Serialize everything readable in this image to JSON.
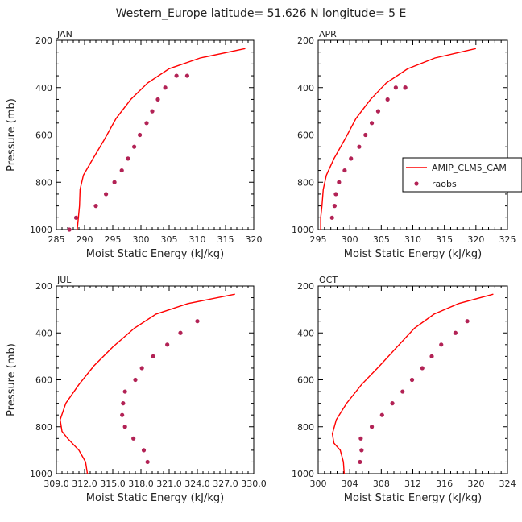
{
  "title": "Western_Europe  latitude= 51.626 N longitude= 5 E",
  "colors": {
    "model": "#ff0000",
    "obs": "#b22255",
    "axis": "#000000"
  },
  "legend": {
    "model_label": "AMIP_CLM5_CAM",
    "obs_label": "raobs",
    "panel": "APR"
  },
  "chart_data": [
    {
      "type": "line",
      "title": "JAN",
      "xlabel": "Moist Static Energy (kJ/kg)",
      "ylabel": "Pressure (mb)",
      "xlim": [
        285,
        320
      ],
      "ylim": [
        1000,
        200
      ],
      "xticks": [
        285,
        290,
        295,
        300,
        305,
        310,
        315,
        320
      ],
      "xtick_labels": [
        "285",
        "290",
        "295",
        "300",
        "305",
        "310",
        "315",
        "320"
      ],
      "yticks": [
        200,
        400,
        600,
        800,
        1000
      ],
      "series": [
        {
          "name": "AMIP_CLM5_CAM",
          "kind": "line",
          "x": [
            288.7,
            288.9,
            289.1,
            289.2,
            289.8,
            291.5,
            293.5,
            295.6,
            298.2,
            301.2,
            305,
            310.5,
            318.5
          ],
          "y": [
            1000,
            950,
            900,
            830,
            770,
            700,
            620,
            530,
            450,
            380,
            320,
            275,
            235
          ]
        },
        {
          "name": "raobs",
          "kind": "scatter",
          "x": [
            287.3,
            288.5,
            292,
            293.8,
            295.3,
            296.6,
            297.7,
            298.8,
            299.8,
            301.0,
            302.0,
            303.0,
            304.3,
            306.3,
            308.2
          ],
          "y": [
            1000,
            950,
            900,
            850,
            800,
            750,
            700,
            650,
            600,
            550,
            500,
            450,
            400,
            350,
            350
          ]
        }
      ]
    },
    {
      "type": "line",
      "title": "APR",
      "xlabel": "Moist Static Energy (kJ/kg)",
      "ylabel": "Pressure (mb)",
      "xlim": [
        295,
        325
      ],
      "ylim": [
        1000,
        200
      ],
      "xticks": [
        295,
        300,
        305,
        310,
        315,
        320,
        325
      ],
      "xtick_labels": [
        "295",
        "300",
        "305",
        "310",
        "315",
        "320",
        "325"
      ],
      "yticks": [
        200,
        400,
        600,
        800,
        1000
      ],
      "series": [
        {
          "name": "AMIP_CLM5_CAM",
          "kind": "line",
          "x": [
            295.4,
            295.4,
            295.6,
            295.8,
            296.3,
            297.5,
            299.2,
            301.0,
            303.3,
            305.8,
            309.2,
            313.5,
            320.0
          ],
          "y": [
            1000,
            950,
            900,
            830,
            770,
            700,
            620,
            530,
            450,
            380,
            320,
            275,
            235
          ]
        },
        {
          "name": "raobs",
          "kind": "scatter",
          "x": [
            297.2,
            297.6,
            297.8,
            298.3,
            299.2,
            300.2,
            301.5,
            302.5,
            303.5,
            304.5,
            306.0,
            307.3,
            308.8,
            308.8
          ],
          "y": [
            950,
            900,
            850,
            800,
            750,
            700,
            650,
            600,
            550,
            500,
            450,
            400,
            400,
            400
          ]
        }
      ]
    },
    {
      "type": "line",
      "title": "JUL",
      "xlabel": "Moist Static Energy (kJ/kg)",
      "ylabel": "Pressure (mb)",
      "xlim": [
        309.0,
        330.0
      ],
      "ylim": [
        1000,
        200
      ],
      "xticks": [
        309.0,
        312.0,
        315.0,
        318.0,
        321.0,
        324.0,
        327.0,
        330.0
      ],
      "xtick_labels": [
        "309.0",
        "312.0",
        "315.0",
        "318.0",
        "321.0",
        "324.0",
        "327.0",
        "330.0"
      ],
      "yticks": [
        200,
        400,
        600,
        800,
        1000
      ],
      "series": [
        {
          "name": "AMIP_CLM5_CAM",
          "kind": "line",
          "x": [
            312.3,
            312.1,
            311.4,
            310.2,
            309.6,
            309.4,
            310.0,
            311.4,
            313.0,
            315.0,
            317.3,
            319.6,
            323.0,
            328.0
          ],
          "y": [
            1000,
            950,
            900,
            850,
            820,
            770,
            700,
            620,
            540,
            460,
            380,
            320,
            275,
            235
          ]
        },
        {
          "name": "raobs",
          "kind": "scatter",
          "x": [
            318.7,
            318.3,
            317.2,
            316.3,
            316.0,
            316.1,
            316.3,
            317.4,
            318.1,
            319.3,
            320.8,
            322.2,
            324.0
          ],
          "y": [
            950,
            900,
            850,
            800,
            750,
            700,
            650,
            600,
            550,
            500,
            450,
            400,
            350
          ]
        }
      ]
    },
    {
      "type": "line",
      "title": "OCT",
      "xlabel": "Moist Static Energy (kJ/kg)",
      "ylabel": "Pressure (mb)",
      "xlim": [
        300,
        324
      ],
      "ylim": [
        1000,
        200
      ],
      "xticks": [
        300,
        304,
        308,
        312,
        316,
        320,
        324
      ],
      "xtick_labels": [
        "300",
        "304",
        "308",
        "312",
        "316",
        "320",
        "324"
      ],
      "yticks": [
        200,
        400,
        600,
        800,
        1000
      ],
      "series": [
        {
          "name": "AMIP_CLM5_CAM",
          "kind": "line",
          "x": [
            303.3,
            303.2,
            302.8,
            302.0,
            301.8,
            302.3,
            303.6,
            305.5,
            307.8,
            310.0,
            312.2,
            314.7,
            317.8,
            322.2
          ],
          "y": [
            1000,
            950,
            900,
            870,
            830,
            770,
            700,
            620,
            540,
            460,
            380,
            320,
            275,
            235
          ]
        },
        {
          "name": "raobs",
          "kind": "scatter",
          "x": [
            305.3,
            305.5,
            305.4,
            306.8,
            308.1,
            309.4,
            310.7,
            311.9,
            313.2,
            314.4,
            315.6,
            317.4,
            318.9
          ],
          "y": [
            950,
            900,
            850,
            800,
            750,
            700,
            650,
            600,
            550,
            500,
            450,
            400,
            350
          ]
        }
      ]
    }
  ]
}
